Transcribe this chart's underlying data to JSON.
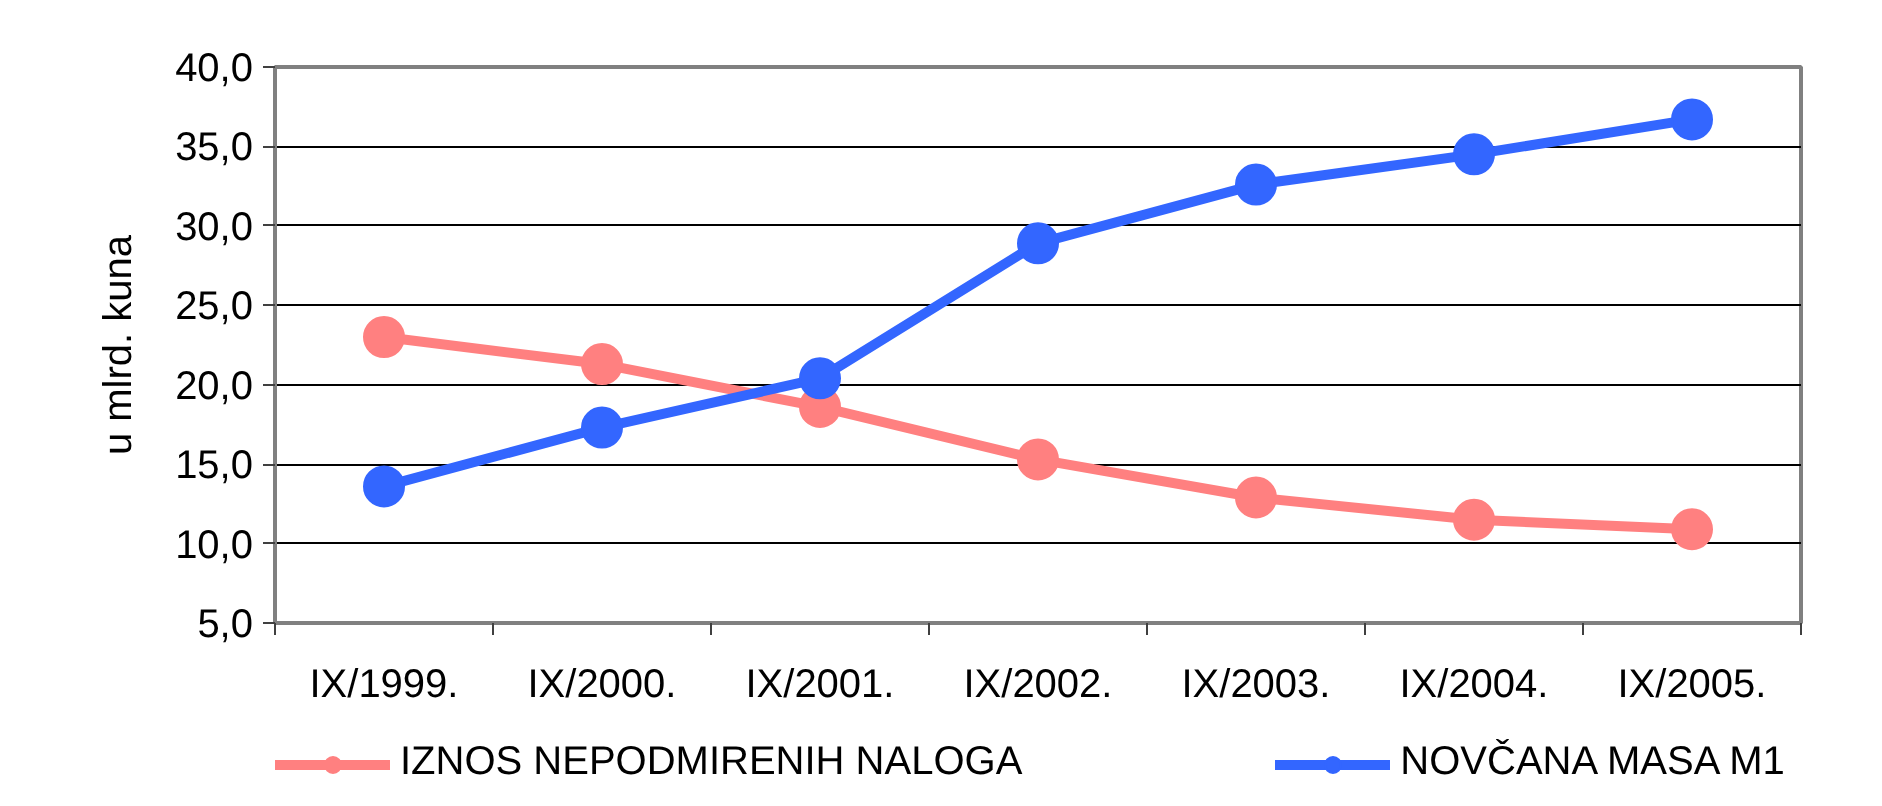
{
  "chart_data": {
    "type": "line",
    "ylabel": "u mlrd. kuna",
    "categories": [
      "IX/1999.",
      "IX/2000.",
      "IX/2001.",
      "IX/2002.",
      "IX/2003.",
      "IX/2004.",
      "IX/2005."
    ],
    "series": [
      {
        "name": "IZNOS NEPODMIRENIH NALOGA",
        "color": "#ff8080",
        "values": [
          23.0,
          21.3,
          18.6,
          15.3,
          12.9,
          11.5,
          10.9
        ]
      },
      {
        "name": "NOVČANA MASA M1",
        "color": "#3366ff",
        "values": [
          13.6,
          17.3,
          20.4,
          28.9,
          32.6,
          34.5,
          36.7
        ]
      }
    ],
    "ylim": [
      5,
      40
    ],
    "yticks": [
      {
        "value": 5,
        "label": "5,0"
      },
      {
        "value": 10,
        "label": "10,0"
      },
      {
        "value": 15,
        "label": "15,0"
      },
      {
        "value": 20,
        "label": "20,0"
      },
      {
        "value": 25,
        "label": "25,0"
      },
      {
        "value": 30,
        "label": "30,0"
      },
      {
        "value": 35,
        "label": "35,0"
      },
      {
        "value": 40,
        "label": "40,0"
      }
    ],
    "grid": "y",
    "legend": "bottom",
    "marker": "circle",
    "line_style": "solid"
  }
}
